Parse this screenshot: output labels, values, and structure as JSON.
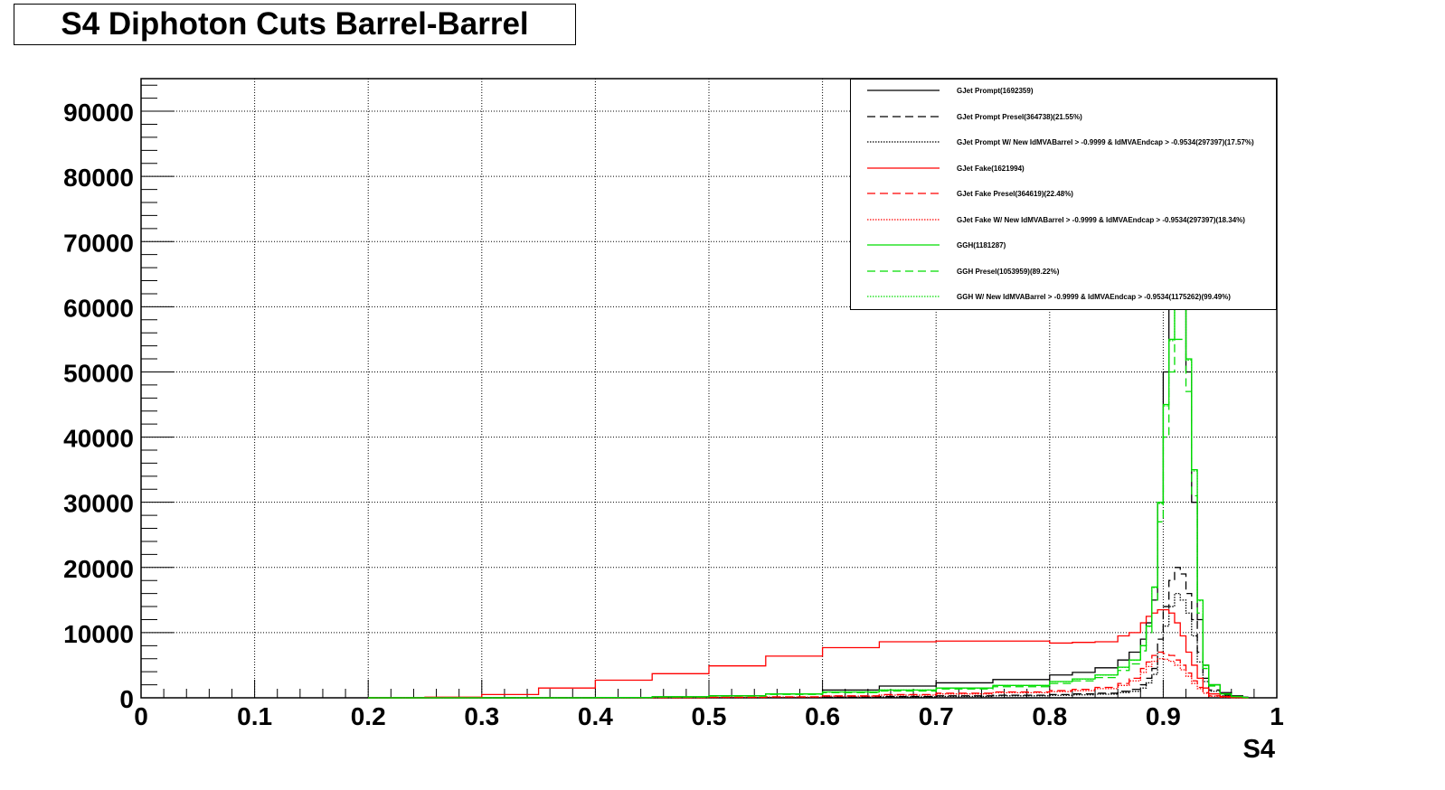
{
  "chart_data": {
    "type": "line",
    "title": "S4 Diphoton Cuts Barrel-Barrel",
    "xlabel": "S4",
    "ylabel": "",
    "xlim": [
      0,
      1
    ],
    "ylim": [
      0,
      95000
    ],
    "x_ticks": [
      "0",
      "0.1",
      "0.2",
      "0.3",
      "0.4",
      "0.5",
      "0.6",
      "0.7",
      "0.8",
      "0.9",
      "1"
    ],
    "y_ticks": [
      "0",
      "10000",
      "20000",
      "30000",
      "40000",
      "50000",
      "60000",
      "70000",
      "80000",
      "90000"
    ],
    "grid": true,
    "legend_position": "top-right",
    "x": [
      0.2,
      0.25,
      0.3,
      0.35,
      0.4,
      0.45,
      0.5,
      0.55,
      0.6,
      0.65,
      0.7,
      0.75,
      0.8,
      0.82,
      0.84,
      0.86,
      0.87,
      0.88,
      0.885,
      0.89,
      0.895,
      0.9,
      0.905,
      0.91,
      0.915,
      0.92,
      0.925,
      0.93,
      0.935,
      0.94,
      0.95,
      0.96,
      0.97
    ],
    "series": [
      {
        "name": "GJet Prompt(1692359)",
        "color": "#000000",
        "dash": "solid",
        "values": [
          0,
          0,
          0,
          0,
          50,
          150,
          300,
          600,
          1200,
          1800,
          2300,
          2800,
          3500,
          3900,
          4600,
          5800,
          7000,
          9000,
          11500,
          15000,
          30000,
          50000,
          65000,
          65000,
          62000,
          50000,
          30000,
          12000,
          5000,
          2000,
          800,
          300,
          100
        ]
      },
      {
        "name": "GJet Prompt Presel(364738)(21.55%)",
        "color": "#000000",
        "dash": "dashed",
        "values": [
          0,
          0,
          0,
          0,
          0,
          0,
          20,
          50,
          100,
          200,
          300,
          400,
          500,
          600,
          700,
          1000,
          1300,
          2000,
          3000,
          4500,
          9000,
          14000,
          18000,
          20000,
          19000,
          16000,
          12000,
          7000,
          3000,
          1200,
          400,
          100,
          30
        ]
      },
      {
        "name": "GJet Prompt W/ New IdMVABarrel > -0.9999 & IdMVAEndcap > -0.9534(297397)(17.57%)",
        "color": "#000000",
        "dash": "dotted",
        "values": [
          0,
          0,
          0,
          0,
          0,
          0,
          10,
          30,
          80,
          150,
          220,
          300,
          380,
          450,
          550,
          800,
          1000,
          1500,
          2300,
          3600,
          7000,
          11000,
          14000,
          16000,
          15000,
          13000,
          9500,
          5500,
          2500,
          1000,
          300,
          80,
          20
        ]
      },
      {
        "name": "GJet Fake(1621994)",
        "color": "#ff0000",
        "dash": "solid",
        "values": [
          0,
          100,
          500,
          1500,
          2700,
          3700,
          4900,
          6400,
          7700,
          8600,
          8700,
          8700,
          8400,
          8500,
          8600,
          9500,
          10000,
          11500,
          12500,
          13000,
          13500,
          13500,
          13000,
          11500,
          9500,
          7000,
          5000,
          3000,
          1500,
          600,
          200,
          50,
          10
        ]
      },
      {
        "name": "GJet Fake Presel(364619)(22.48%)",
        "color": "#ff0000",
        "dash": "dashed",
        "values": [
          0,
          0,
          0,
          0,
          0,
          20,
          80,
          150,
          300,
          500,
          700,
          900,
          1100,
          1300,
          1600,
          2200,
          3000,
          4500,
          5500,
          6500,
          7000,
          6800,
          6500,
          5800,
          5000,
          3800,
          2600,
          1600,
          800,
          300,
          100,
          30,
          10
        ]
      },
      {
        "name": "GJet Fake W/ New IdMVABarrel > -0.9999 & IdMVAEndcap > -0.9534(297397)(18.34%)",
        "color": "#ff0000",
        "dash": "dotted",
        "values": [
          0,
          0,
          0,
          0,
          0,
          10,
          60,
          120,
          250,
          420,
          600,
          780,
          950,
          1100,
          1400,
          1900,
          2600,
          3900,
          4800,
          5600,
          6000,
          5900,
          5600,
          5000,
          4300,
          3300,
          2200,
          1400,
          700,
          250,
          80,
          20,
          5
        ]
      },
      {
        "name": "GGH(1181287)",
        "color": "#00dd00",
        "dash": "solid",
        "values": [
          0,
          0,
          0,
          0,
          50,
          150,
          300,
          600,
          900,
          1200,
          1500,
          1900,
          2500,
          2900,
          3500,
          4700,
          5800,
          8000,
          11000,
          17000,
          30000,
          45000,
          55000,
          60000,
          60000,
          52000,
          35000,
          15000,
          5000,
          2000,
          600,
          200,
          50
        ]
      },
      {
        "name": "GGH Presel(1053959)(89.22%)",
        "color": "#00dd00",
        "dash": "dashed",
        "values": [
          0,
          0,
          0,
          0,
          40,
          130,
          260,
          520,
          800,
          1050,
          1350,
          1700,
          2200,
          2600,
          3100,
          4200,
          5200,
          7200,
          10000,
          15000,
          27000,
          40000,
          50000,
          55000,
          55000,
          47000,
          31000,
          13000,
          4500,
          1800,
          550,
          180,
          40
        ]
      },
      {
        "name": "GGH W/ New IdMVABarrel > -0.9999 & IdMVAEndcap > -0.9534(1175262)(99.49%)",
        "color": "#00dd00",
        "dash": "dotted",
        "values": [
          0,
          0,
          0,
          0,
          45,
          145,
          290,
          590,
          890,
          1190,
          1490,
          1890,
          2480,
          2880,
          3480,
          4680,
          5780,
          7970,
          10950,
          16900,
          29800,
          44800,
          54800,
          59800,
          59800,
          51800,
          34800,
          14900,
          4950,
          1980,
          590,
          195,
          48
        ]
      }
    ]
  }
}
